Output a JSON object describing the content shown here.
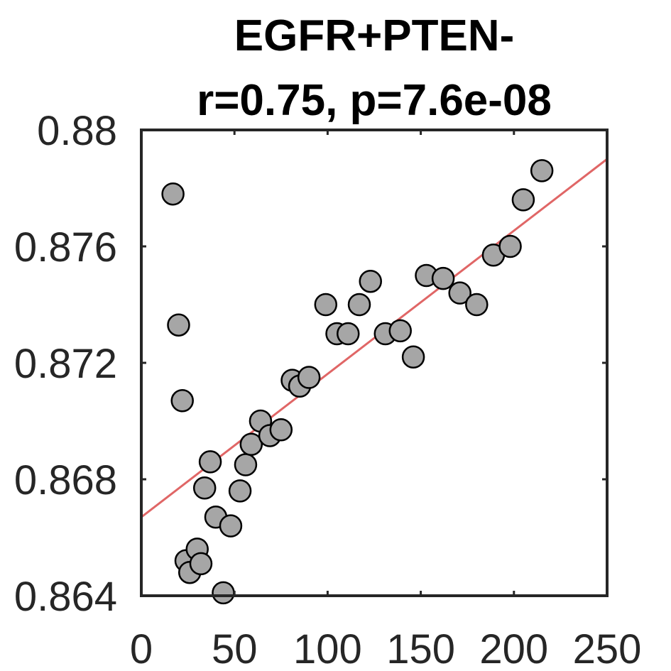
{
  "chart_data": {
    "type": "scatter",
    "title": "EGFR+PTEN-",
    "subtitle": "r=0.75, p=7.6e-08",
    "xlabel": "",
    "ylabel": "",
    "xlim": [
      0,
      250
    ],
    "ylim": [
      0.864,
      0.88
    ],
    "xticks": [
      0,
      50,
      100,
      150,
      200,
      250
    ],
    "xtick_labels": [
      "0",
      "50",
      "100",
      "150",
      "200",
      "250"
    ],
    "yticks": [
      0.864,
      0.868,
      0.872,
      0.876,
      0.88
    ],
    "ytick_labels": [
      "0.864",
      "0.868",
      "0.872",
      "0.876",
      "0.88"
    ],
    "grid": false,
    "marker_color": "#a6a6a6",
    "marker_edge_color": "#000000",
    "fit_line_color": "#e06666",
    "points": [
      {
        "x": 17,
        "y": 0.8778
      },
      {
        "x": 20,
        "y": 0.8733
      },
      {
        "x": 22,
        "y": 0.8707
      },
      {
        "x": 24,
        "y": 0.8652
      },
      {
        "x": 26,
        "y": 0.8648
      },
      {
        "x": 30,
        "y": 0.8656
      },
      {
        "x": 32,
        "y": 0.8651
      },
      {
        "x": 34,
        "y": 0.8677
      },
      {
        "x": 37,
        "y": 0.8686
      },
      {
        "x": 40,
        "y": 0.8667
      },
      {
        "x": 44,
        "y": 0.8641
      },
      {
        "x": 48,
        "y": 0.8664
      },
      {
        "x": 53,
        "y": 0.8676
      },
      {
        "x": 56,
        "y": 0.8685
      },
      {
        "x": 59,
        "y": 0.8692
      },
      {
        "x": 64,
        "y": 0.87
      },
      {
        "x": 69,
        "y": 0.8695
      },
      {
        "x": 75,
        "y": 0.8697
      },
      {
        "x": 81,
        "y": 0.8714
      },
      {
        "x": 85,
        "y": 0.8712
      },
      {
        "x": 90,
        "y": 0.8715
      },
      {
        "x": 99,
        "y": 0.874
      },
      {
        "x": 105,
        "y": 0.873
      },
      {
        "x": 111,
        "y": 0.873
      },
      {
        "x": 117,
        "y": 0.874
      },
      {
        "x": 123,
        "y": 0.8748
      },
      {
        "x": 131,
        "y": 0.873
      },
      {
        "x": 139,
        "y": 0.8731
      },
      {
        "x": 146,
        "y": 0.8722
      },
      {
        "x": 153,
        "y": 0.875
      },
      {
        "x": 162,
        "y": 0.8749
      },
      {
        "x": 171,
        "y": 0.8744
      },
      {
        "x": 180,
        "y": 0.874
      },
      {
        "x": 189,
        "y": 0.8757
      },
      {
        "x": 198,
        "y": 0.876
      },
      {
        "x": 205,
        "y": 0.8776
      },
      {
        "x": 215,
        "y": 0.8786
      }
    ],
    "fit_line": {
      "x": [
        0,
        250
      ],
      "y": [
        0.8667,
        0.879
      ]
    }
  }
}
